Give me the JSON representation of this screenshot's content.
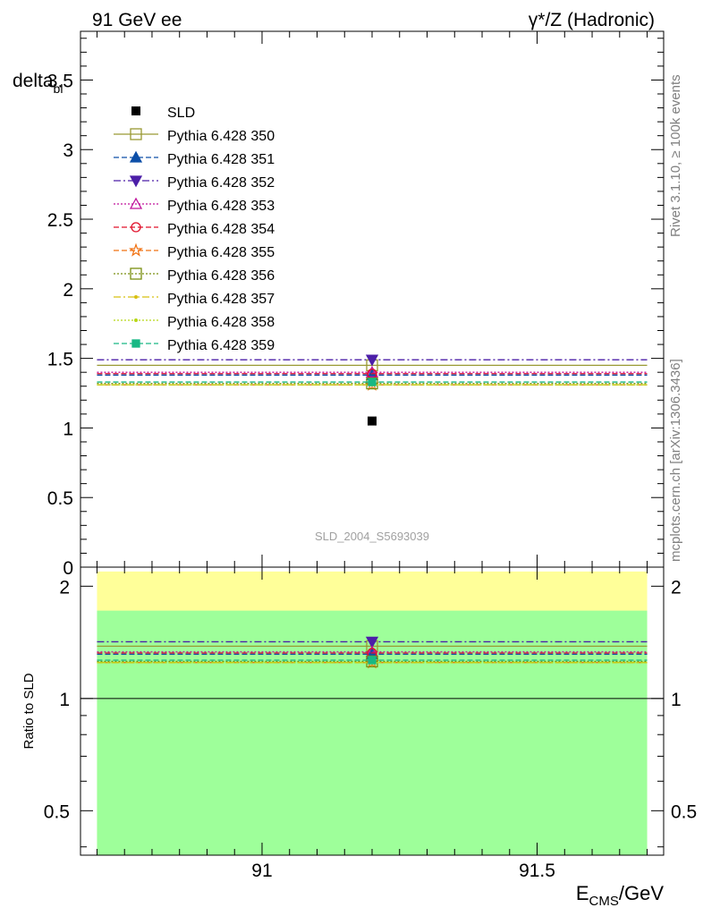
{
  "header": {
    "left": "91 GeV ee",
    "right": "γ*/Z (Hadronic)"
  },
  "side_labels": {
    "rivet": "Rivet 3.1.10, ≥ 100k events",
    "mcplots": "mcplots.cern.ch [arXiv:1306.3436]"
  },
  "watermark": "SLD_2004_S5693039",
  "chart_data": [
    {
      "type": "scatter",
      "panel": "main",
      "ylabel_main": "delta",
      "ylabel_sub": "bl",
      "ylim": [
        0,
        3.85
      ],
      "yticks": [
        0,
        0.5,
        1,
        1.5,
        2,
        2.5,
        3,
        3.5
      ],
      "ytick_labels": [
        "0",
        "0.5",
        "1",
        "1.5",
        "2",
        "2.5",
        "3",
        "3.5"
      ],
      "xlim": [
        90.67,
        91.73
      ],
      "bin": [
        90.7,
        91.7
      ],
      "x": 91.2,
      "data": {
        "name": "SLD",
        "y": 1.05,
        "color": "#000000"
      },
      "legend_position": "top-left",
      "series": [
        {
          "name": "Pythia 6.428 350",
          "y": 1.45,
          "color": "#999933",
          "marker": "open-square",
          "dash": "solid"
        },
        {
          "name": "Pythia 6.428 351",
          "y": 1.38,
          "color": "#0d4fa8",
          "marker": "filled-triangle-up",
          "dash": "dashed"
        },
        {
          "name": "Pythia 6.428 352",
          "y": 1.49,
          "color": "#4c1fa8",
          "marker": "filled-triangle-down",
          "dash": "dashdot"
        },
        {
          "name": "Pythia 6.428 353",
          "y": 1.4,
          "color": "#c0149c",
          "marker": "open-triangle-up",
          "dash": "dotted"
        },
        {
          "name": "Pythia 6.428 354",
          "y": 1.39,
          "color": "#e0102a",
          "marker": "open-circle",
          "dash": "dashed"
        },
        {
          "name": "Pythia 6.428 355",
          "y": 1.31,
          "color": "#f07010",
          "marker": "open-star",
          "dash": "dashed"
        },
        {
          "name": "Pythia 6.428 356",
          "y": 1.32,
          "color": "#7a8f10",
          "marker": "open-square",
          "dash": "dotted"
        },
        {
          "name": "Pythia 6.428 357",
          "y": 1.31,
          "color": "#d8c010",
          "marker": "small-dot",
          "dash": "dashdot"
        },
        {
          "name": "Pythia 6.428 358",
          "y": 1.31,
          "color": "#b8d818",
          "marker": "small-dot",
          "dash": "dotted"
        },
        {
          "name": "Pythia 6.428 359",
          "y": 1.33,
          "color": "#18b884",
          "marker": "filled-square",
          "dash": "dashed"
        }
      ]
    },
    {
      "type": "scatter",
      "panel": "ratio",
      "ylabel": "Ratio to SLD",
      "xlabel": "E",
      "xlabel_sub": "CMS",
      "xlabel_unit": "/GeV",
      "xticks": [
        91,
        91.5
      ],
      "xtick_labels": [
        "91",
        "91.5"
      ],
      "yscale": "log",
      "ylim": [
        0.38,
        2.25
      ],
      "yticks": [
        0.5,
        1,
        2
      ],
      "ytick_labels": [
        "0.5",
        "1",
        "2"
      ],
      "reference": 1,
      "uncertainty_bands": [
        {
          "name": "1-sigma",
          "low": 0.365,
          "high": 1.72,
          "color": "#9eff9a"
        },
        {
          "name": "2-sigma",
          "low": 0.365,
          "high": 2.19,
          "color": "#ffff99"
        }
      ],
      "ratios": [
        1.381,
        1.314,
        1.419,
        1.333,
        1.324,
        1.248,
        1.257,
        1.248,
        1.248,
        1.267
      ]
    }
  ]
}
